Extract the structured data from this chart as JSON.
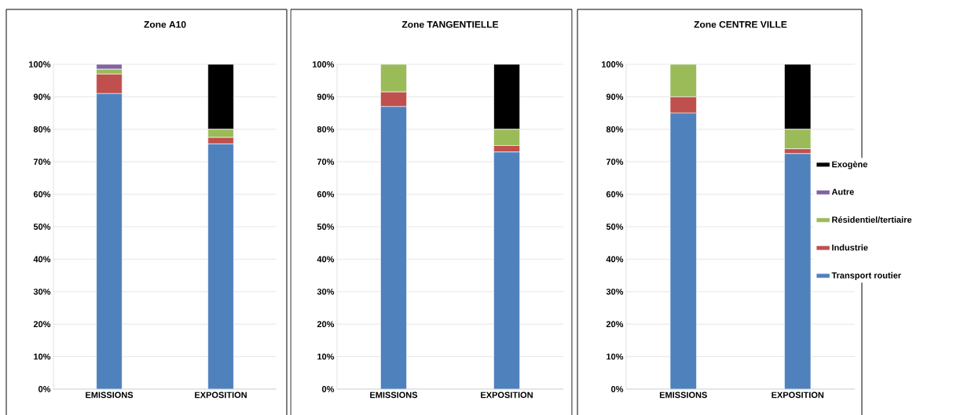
{
  "chart_data": [
    {
      "type": "bar",
      "title": "Zone A10",
      "stacked": true,
      "categories": [
        "EMISSIONS",
        "EXPOSITION"
      ],
      "series": [
        {
          "color": "#4f81bd",
          "values": [
            91,
            75.5
          ]
        },
        {
          "color": "#c0504d",
          "values": [
            6,
            2
          ]
        },
        {
          "color": "#9bbb59",
          "values": [
            1.5,
            2.5
          ]
        },
        {
          "color": "#8064a2",
          "values": [
            1.5,
            0
          ]
        },
        {
          "color": "#000000",
          "values": [
            0,
            20
          ]
        }
      ],
      "ylim": [
        0,
        100
      ],
      "yticks": [
        {
          "value": 0,
          "label": "0%"
        },
        {
          "value": 10,
          "label": "10%"
        },
        {
          "value": 20,
          "label": "20%"
        },
        {
          "value": 30,
          "label": "30%"
        },
        {
          "value": 40,
          "label": "40%"
        },
        {
          "value": 50,
          "label": "50%"
        },
        {
          "value": 60,
          "label": "60%"
        },
        {
          "value": 70,
          "label": "70%"
        },
        {
          "value": 80,
          "label": "80%"
        },
        {
          "value": 90,
          "label": "90%"
        },
        {
          "value": 100,
          "label": "100%"
        }
      ],
      "grid": "y",
      "legend": false
    },
    {
      "type": "bar",
      "title": "Zone TANGENTIELLE",
      "stacked": true,
      "categories": [
        "EMISSIONS",
        "EXPOSITION"
      ],
      "series": [
        {
          "color": "#4f81bd",
          "values": [
            87,
            73
          ]
        },
        {
          "color": "#c0504d",
          "values": [
            4.5,
            2
          ]
        },
        {
          "color": "#9bbb59",
          "values": [
            8.5,
            5
          ]
        },
        {
          "color": "#000000",
          "values": [
            0,
            20
          ]
        }
      ],
      "ylim": [
        0,
        100
      ],
      "yticks": [
        {
          "value": 0,
          "label": "0%"
        },
        {
          "value": 10,
          "label": "10%"
        },
        {
          "value": 20,
          "label": "20%"
        },
        {
          "value": 30,
          "label": "30%"
        },
        {
          "value": 40,
          "label": "40%"
        },
        {
          "value": 50,
          "label": "50%"
        },
        {
          "value": 60,
          "label": "60%"
        },
        {
          "value": 70,
          "label": "70%"
        },
        {
          "value": 80,
          "label": "80%"
        },
        {
          "value": 90,
          "label": "90%"
        },
        {
          "value": 100,
          "label": "100%"
        }
      ],
      "grid": "y",
      "legend": false
    },
    {
      "type": "bar",
      "title": "Zone CENTRE VILLE",
      "stacked": true,
      "categories": [
        "EMISSIONS",
        "EXPOSITION"
      ],
      "series": [
        {
          "name": "Transport routier",
          "color": "#4f81bd",
          "values": [
            85,
            72.5
          ]
        },
        {
          "name": "Industrie",
          "color": "#c0504d",
          "values": [
            5,
            1.5
          ]
        },
        {
          "name": "Résidentiel/tertiaire",
          "color": "#9bbb59",
          "values": [
            10,
            6
          ]
        },
        {
          "name": "Autre",
          "color": "#8064a2",
          "values": [
            0,
            0
          ]
        },
        {
          "name": "Exogène",
          "color": "#000000",
          "values": [
            0,
            20
          ]
        }
      ],
      "ylim": [
        0,
        100
      ],
      "yticks": [
        {
          "value": 0,
          "label": "0%"
        },
        {
          "value": 10,
          "label": "10%"
        },
        {
          "value": 20,
          "label": "20%"
        },
        {
          "value": 30,
          "label": "30%"
        },
        {
          "value": 40,
          "label": "40%"
        },
        {
          "value": 50,
          "label": "50%"
        },
        {
          "value": 60,
          "label": "60%"
        },
        {
          "value": 70,
          "label": "70%"
        },
        {
          "value": 80,
          "label": "80%"
        },
        {
          "value": 90,
          "label": "90%"
        },
        {
          "value": 100,
          "label": "100%"
        }
      ],
      "grid": "y",
      "legend": "right"
    }
  ]
}
